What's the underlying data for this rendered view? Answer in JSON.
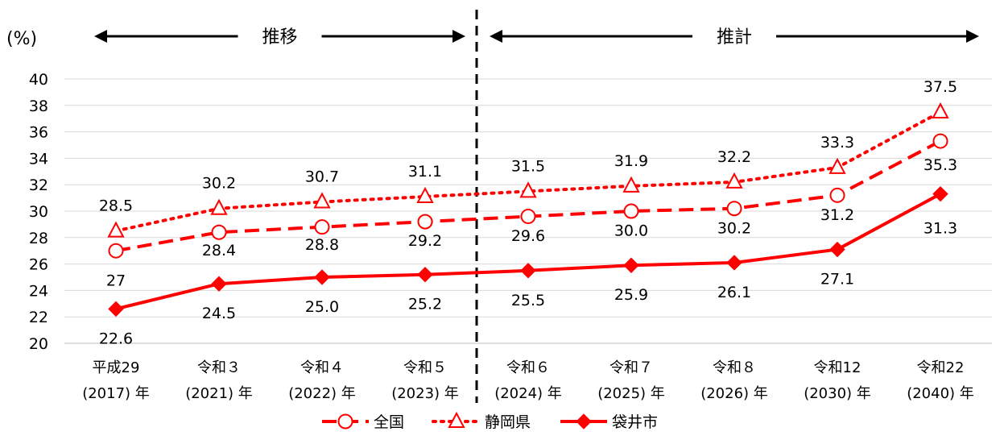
{
  "chart_data": {
    "type": "line",
    "unit_label": "(%)",
    "categories": [
      [
        "平成29",
        "(2017) 年"
      ],
      [
        "令和３",
        "(2021) 年"
      ],
      [
        "令和４",
        "(2022) 年"
      ],
      [
        "令和５",
        "(2023) 年"
      ],
      [
        "令和６",
        "(2024) 年"
      ],
      [
        "令和７",
        "(2025) 年"
      ],
      [
        "令和８",
        "(2026) 年"
      ],
      [
        "令和12",
        "(2030) 年"
      ],
      [
        "令和22",
        "(2040) 年"
      ]
    ],
    "ylim": [
      20,
      40
    ],
    "yticks": [
      20,
      22,
      24,
      26,
      28,
      30,
      32,
      34,
      36,
      38,
      40
    ],
    "grid": true,
    "period_labels": {
      "left": "推移",
      "right": "推計"
    },
    "divider_after_index": 3,
    "legend_position": "bottom",
    "series": [
      {
        "name": "全国",
        "color": "#ff0000",
        "line_style": "dashed",
        "marker": "open-circle",
        "values": [
          27,
          28.4,
          28.8,
          29.2,
          29.6,
          30.0,
          30.2,
          31.2,
          35.3
        ],
        "labels": [
          "27",
          "28.4",
          "28.8",
          "29.2",
          "29.6",
          "30.0",
          "30.2",
          "31.2",
          "35.3"
        ]
      },
      {
        "name": "静岡県",
        "color": "#ff0000",
        "line_style": "dotted",
        "marker": "open-triangle",
        "values": [
          28.5,
          30.2,
          30.7,
          31.1,
          31.5,
          31.9,
          32.2,
          33.3,
          37.5
        ],
        "labels": [
          "28.5",
          "30.2",
          "30.7",
          "31.1",
          "31.5",
          "31.9",
          "32.2",
          "33.3",
          "37.5"
        ]
      },
      {
        "name": "袋井市",
        "color": "#ff0000",
        "line_style": "solid",
        "marker": "filled-diamond",
        "values": [
          22.6,
          24.5,
          25.0,
          25.2,
          25.5,
          25.9,
          26.1,
          27.1,
          31.3
        ],
        "labels": [
          "22.6",
          "24.5",
          "25.0",
          "25.2",
          "25.5",
          "25.9",
          "26.1",
          "27.1",
          "31.3"
        ]
      }
    ]
  }
}
